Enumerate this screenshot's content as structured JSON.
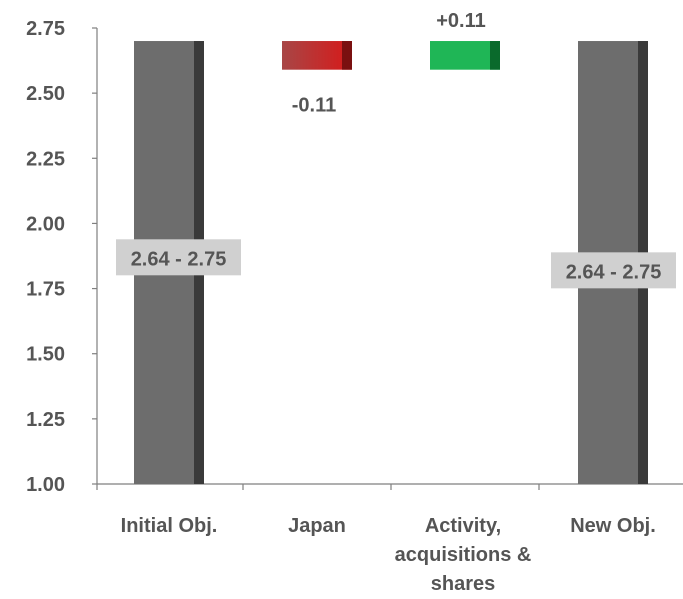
{
  "chart_data": {
    "type": "bar",
    "subtype": "waterfall",
    "title": "",
    "xlabel": "",
    "ylabel": "",
    "ylim": [
      1.0,
      2.75
    ],
    "yticks": [
      "1.00",
      "1.25",
      "1.50",
      "1.75",
      "2.00",
      "2.25",
      "2.50",
      "2.75"
    ],
    "grid": false,
    "legend": "none",
    "categories": [
      {
        "label_lines": [
          "Initial Obj."
        ],
        "kind": "total",
        "base": 1.0,
        "top": 2.7,
        "range_label": "2.64 - 2.75",
        "range_label_at": 1.87
      },
      {
        "label_lines": [
          "Japan"
        ],
        "kind": "decrease",
        "base": 2.59,
        "top": 2.7,
        "value_label": "-0.11"
      },
      {
        "label_lines": [
          "Activity,",
          "acquisitions &",
          "shares"
        ],
        "kind": "increase",
        "base": 2.59,
        "top": 2.7,
        "value_label": "+0.11"
      },
      {
        "label_lines": [
          "New Obj."
        ],
        "kind": "total",
        "base": 1.0,
        "top": 2.7,
        "range_label": "2.64 - 2.75",
        "range_label_at": 1.82
      }
    ],
    "colors": {
      "total": "#6d6d6d",
      "total_edge": "#3a3a3a",
      "decrease": "#c0302a",
      "decrease_edge": "#7a1010",
      "increase": "#1fb656",
      "increase_edge": "#0a6a2c",
      "range_box": "#d0d0d0",
      "axis": "#7f7f7f",
      "text": "#555555"
    }
  }
}
